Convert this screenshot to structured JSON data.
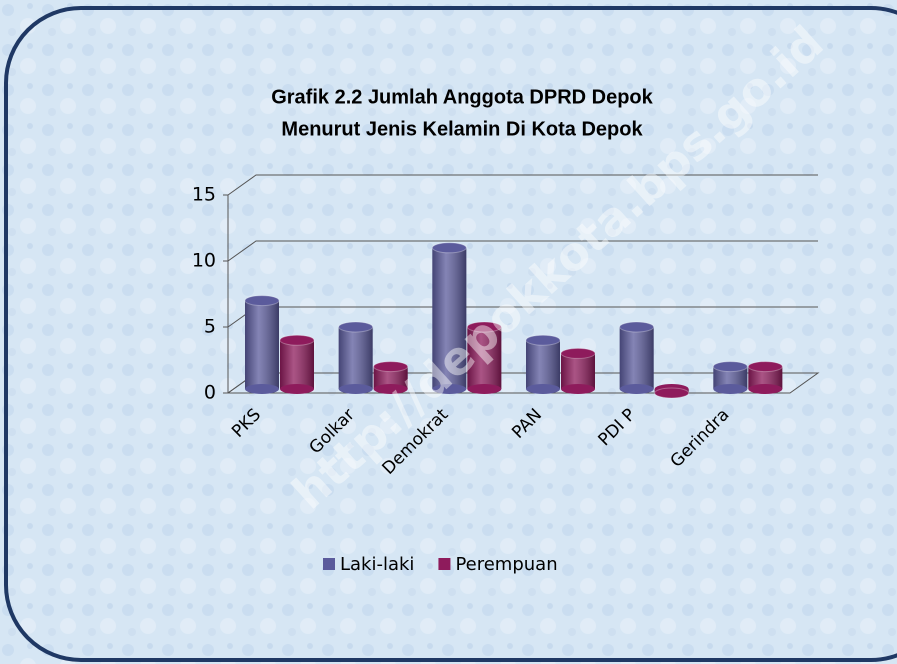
{
  "chart_data": {
    "type": "bar3d",
    "title": [
      "Grafik 2.2 Jumlah Anggota DPRD Depok",
      "Menurut Jenis Kelamin Di Kota Depok"
    ],
    "categories": [
      "PKS",
      "Golkar",
      "Demokrat",
      "PAN",
      "PDI P",
      "Gerindra"
    ],
    "series": [
      {
        "name": "Laki-laki",
        "color": "#5b5b9c",
        "values": [
          7,
          5,
          11,
          4,
          5,
          2
        ]
      },
      {
        "name": "Perempuan",
        "color": "#8e1b5c",
        "values": [
          4,
          2,
          5,
          3,
          0,
          2
        ]
      }
    ],
    "ylim": [
      0,
      15
    ],
    "yticks": [
      0,
      5,
      10,
      15
    ],
    "grid": true,
    "legend": "bottom",
    "watermark": "http://depokkota.bps.go.id"
  }
}
